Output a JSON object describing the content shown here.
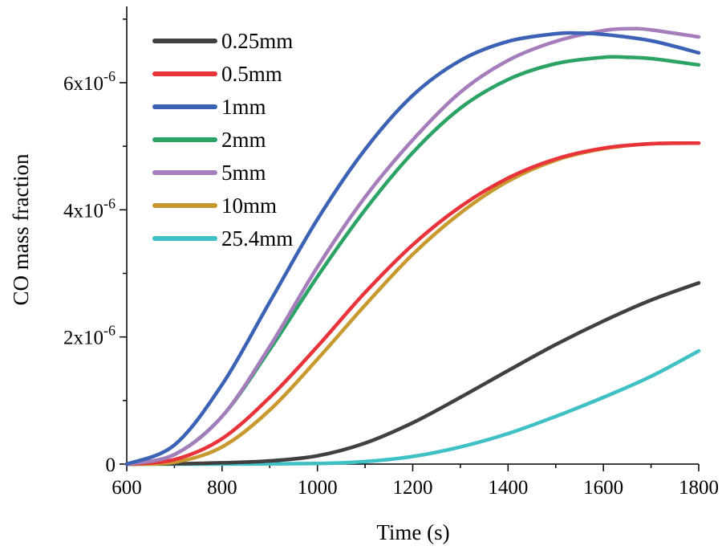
{
  "chart_data": {
    "type": "line",
    "title": "",
    "xlabel": "Time (s)",
    "ylabel": "CO mass fraction",
    "xlim": [
      600,
      1800
    ],
    "ylim": [
      0,
      7.2e-06
    ],
    "x_ticks": [
      600,
      800,
      1000,
      1200,
      1400,
      1600,
      1800
    ],
    "x_tick_labels": [
      "600",
      "800",
      "1000",
      "1200",
      "1400",
      "1600",
      "1800"
    ],
    "y_ticks": [
      0,
      2e-06,
      4e-06,
      6e-06
    ],
    "y_tick_labels": [
      {
        "base": "0",
        "exp": ""
      },
      {
        "base": "2x10",
        "exp": "-6"
      },
      {
        "base": "4x10",
        "exp": "-6"
      },
      {
        "base": "6x10",
        "exp": "-6"
      }
    ],
    "grid": false,
    "legend_position": "top-left",
    "series": [
      {
        "name": "0.25mm",
        "color": "#404040",
        "x": [
          600,
          700,
          800,
          900,
          1000,
          1100,
          1200,
          1300,
          1400,
          1500,
          1600,
          1700,
          1800
        ],
        "y": [
          0,
          5e-09,
          2e-08,
          5e-08,
          1.3e-07,
          3.3e-07,
          6.5e-07,
          1.05e-06,
          1.47e-06,
          1.88e-06,
          2.25e-06,
          2.58e-06,
          2.85e-06
        ]
      },
      {
        "name": "0.5mm",
        "color": "#e8333a",
        "x": [
          600,
          700,
          800,
          900,
          1000,
          1100,
          1200,
          1300,
          1400,
          1500,
          1600,
          1700,
          1800
        ],
        "y": [
          0,
          7e-08,
          4e-07,
          1.05e-06,
          1.85e-06,
          2.7e-06,
          3.45e-06,
          4.05e-06,
          4.5e-06,
          4.8e-06,
          4.97e-06,
          5.04e-06,
          5.05e-06
        ]
      },
      {
        "name": "1mm",
        "color": "#3b62b4",
        "x": [
          600,
          700,
          800,
          900,
          1000,
          1100,
          1200,
          1300,
          1400,
          1500,
          1550,
          1600,
          1700,
          1800
        ],
        "y": [
          0,
          3e-07,
          1.25e-06,
          2.55e-06,
          3.85e-06,
          4.95e-06,
          5.8e-06,
          6.35e-06,
          6.65e-06,
          6.77e-06,
          6.78e-06,
          6.76e-06,
          6.66e-06,
          6.47e-06
        ]
      },
      {
        "name": "2mm",
        "color": "#2ba365",
        "x": [
          600,
          700,
          800,
          900,
          1000,
          1100,
          1200,
          1300,
          1400,
          1500,
          1600,
          1650,
          1700,
          1800
        ],
        "y": [
          0,
          1.5e-07,
          7.5e-07,
          1.8e-06,
          2.95e-06,
          4e-06,
          4.9e-06,
          5.6e-06,
          6.05e-06,
          6.3e-06,
          6.4e-06,
          6.4e-06,
          6.38e-06,
          6.28e-06
        ]
      },
      {
        "name": "5mm",
        "color": "#a57dbb",
        "x": [
          600,
          700,
          800,
          900,
          1000,
          1100,
          1200,
          1300,
          1400,
          1500,
          1600,
          1660,
          1700,
          1800
        ],
        "y": [
          0,
          1.5e-07,
          7.5e-07,
          1.85e-06,
          3.1e-06,
          4.2e-06,
          5.1e-06,
          5.85e-06,
          6.35e-06,
          6.65e-06,
          6.82e-06,
          6.85e-06,
          6.83e-06,
          6.72e-06
        ]
      },
      {
        "name": "10mm",
        "color": "#c7992e",
        "x": [
          600,
          700,
          800,
          900,
          1000,
          1100,
          1200,
          1300,
          1400,
          1500,
          1600,
          1700,
          1800
        ],
        "y": [
          0,
          3e-08,
          2.7e-07,
          8.5e-07,
          1.65e-06,
          2.5e-06,
          3.3e-06,
          3.95e-06,
          4.45e-06,
          4.78e-06,
          4.96e-06,
          5.04e-06,
          5.05e-06
        ]
      },
      {
        "name": "25.4mm",
        "color": "#3ec0c4",
        "x": [
          600,
          800,
          1000,
          1100,
          1200,
          1300,
          1400,
          1500,
          1600,
          1700,
          1800
        ],
        "y": [
          0,
          0,
          1e-08,
          4e-08,
          1.2e-07,
          2.7e-07,
          4.8e-07,
          7.5e-07,
          1.05e-06,
          1.38e-06,
          1.78e-06
        ]
      }
    ]
  }
}
